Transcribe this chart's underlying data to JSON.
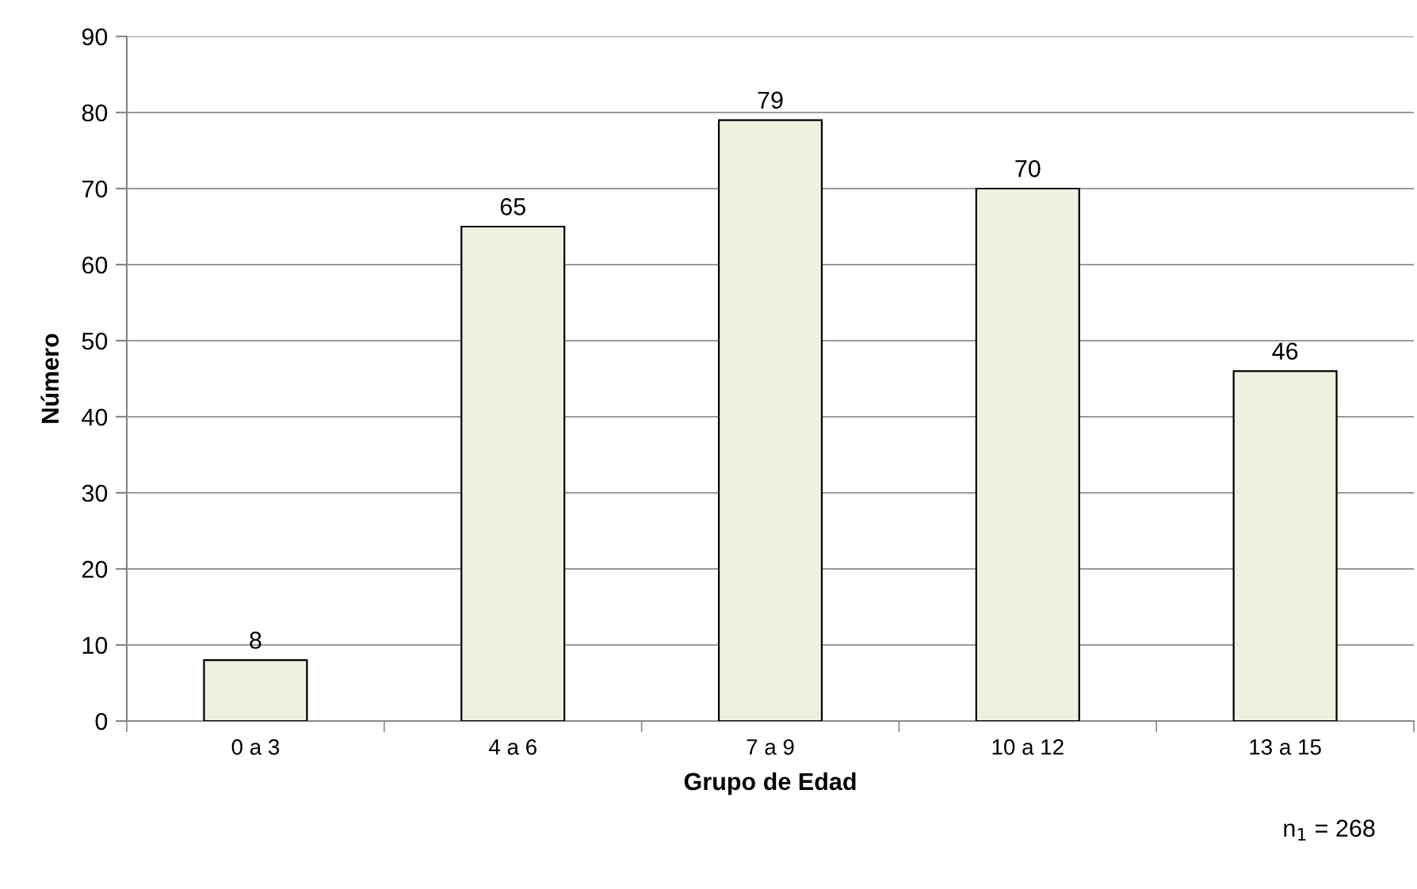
{
  "chart_data": {
    "type": "bar",
    "xlabel": "Grupo de Edad",
    "ylabel": "Número",
    "categories": [
      "0 a 3",
      "4 a 6",
      "7 a 9",
      "10 a 12",
      "13 a 15"
    ],
    "values": [
      8,
      65,
      79,
      70,
      46
    ],
    "color": "#eef0e0",
    "ylim": [
      0,
      90
    ],
    "yticks": [
      0,
      10,
      20,
      30,
      40,
      50,
      60,
      70,
      80,
      90
    ],
    "grid": "y",
    "data_labels": true,
    "annotations": [
      "n$_{1}$ = 268"
    ]
  }
}
